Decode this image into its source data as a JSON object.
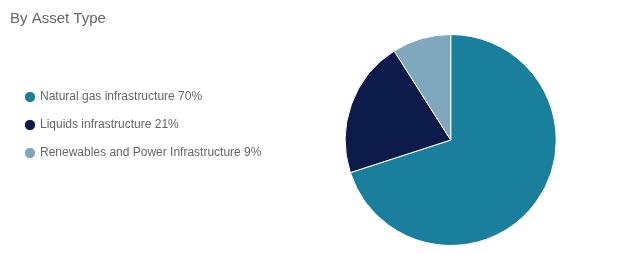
{
  "chart_data": {
    "type": "pie",
    "title": "By Asset Type",
    "categories": [
      "Natural gas infrastructure 70%",
      "Liquids infrastructure 21%",
      "Renewables and Power Infrastructure 9%"
    ],
    "values": [
      70,
      21,
      9
    ],
    "colors": [
      "#1a7f9c",
      "#0d1b4b",
      "#7fa8be"
    ],
    "legend": "left"
  }
}
